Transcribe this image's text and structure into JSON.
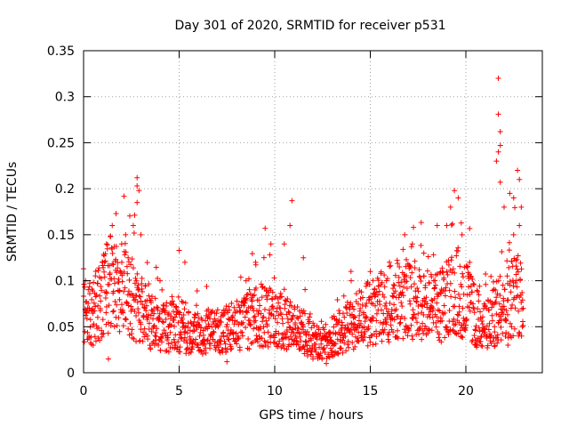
{
  "chart_data": {
    "type": "scatter",
    "title": "Day 301 of 2020, SRMTID for receiver p531",
    "xlabel": "GPS time / hours",
    "ylabel": "SRMTID / TECUs",
    "xlim": [
      0,
      24
    ],
    "ylim": [
      0,
      0.35
    ],
    "x_ticks": [
      0,
      5,
      10,
      15,
      20
    ],
    "y_ticks": [
      0,
      0.05,
      0.1,
      0.15,
      0.2,
      0.25,
      0.3,
      0.35
    ],
    "x_tick_labels": [
      "0",
      "5",
      "10",
      "15",
      "20"
    ],
    "y_tick_labels": [
      "0",
      "0.05",
      "0.1",
      "0.15",
      "0.2",
      "0.25",
      "0.3",
      "0.35"
    ],
    "grid": true,
    "marker": "+",
    "series_color": "#ff0000",
    "trend": [
      [
        0.0,
        0.06
      ],
      [
        0.5,
        0.065
      ],
      [
        1.0,
        0.08
      ],
      [
        1.5,
        0.1
      ],
      [
        2.0,
        0.09
      ],
      [
        2.5,
        0.08
      ],
      [
        3.0,
        0.07
      ],
      [
        3.5,
        0.055
      ],
      [
        4.0,
        0.05
      ],
      [
        5.0,
        0.048
      ],
      [
        6.0,
        0.042
      ],
      [
        7.0,
        0.045
      ],
      [
        8.0,
        0.05
      ],
      [
        9.0,
        0.06
      ],
      [
        10.0,
        0.06
      ],
      [
        11.0,
        0.05
      ],
      [
        12.0,
        0.035
      ],
      [
        12.8,
        0.03
      ],
      [
        13.5,
        0.045
      ],
      [
        14.5,
        0.06
      ],
      [
        15.5,
        0.07
      ],
      [
        16.5,
        0.08
      ],
      [
        17.5,
        0.08
      ],
      [
        18.5,
        0.07
      ],
      [
        19.5,
        0.09
      ],
      [
        20.0,
        0.08
      ],
      [
        20.5,
        0.06
      ],
      [
        21.0,
        0.05
      ],
      [
        21.5,
        0.06
      ],
      [
        22.0,
        0.08
      ],
      [
        22.5,
        0.085
      ],
      [
        23.0,
        0.08
      ]
    ],
    "points": [
      [
        0.0,
        0.113
      ],
      [
        0.1,
        0.1
      ],
      [
        0.3,
        0.07
      ],
      [
        0.5,
        0.03
      ],
      [
        1.0,
        0.12
      ],
      [
        1.2,
        0.14
      ],
      [
        1.5,
        0.16
      ],
      [
        1.7,
        0.173
      ],
      [
        2.0,
        0.12
      ],
      [
        2.2,
        0.15
      ],
      [
        2.6,
        0.16
      ],
      [
        2.8,
        0.212
      ],
      [
        2.8,
        0.203
      ],
      [
        2.9,
        0.198
      ],
      [
        2.8,
        0.185
      ],
      [
        3.0,
        0.15
      ],
      [
        1.3,
        0.015
      ],
      [
        4.0,
        0.1
      ],
      [
        5.0,
        0.133
      ],
      [
        5.3,
        0.12
      ],
      [
        6.0,
        0.03
      ],
      [
        7.5,
        0.012
      ],
      [
        8.5,
        0.1
      ],
      [
        9.0,
        0.12
      ],
      [
        9.5,
        0.157
      ],
      [
        9.8,
        0.14
      ],
      [
        10.5,
        0.14
      ],
      [
        10.8,
        0.16
      ],
      [
        10.9,
        0.187
      ],
      [
        11.5,
        0.125
      ],
      [
        12.0,
        0.015
      ],
      [
        12.7,
        0.01
      ],
      [
        13.0,
        0.06
      ],
      [
        14.0,
        0.1
      ],
      [
        15.0,
        0.11
      ],
      [
        16.0,
        0.12
      ],
      [
        16.8,
        0.15
      ],
      [
        17.2,
        0.14
      ],
      [
        17.8,
        0.13
      ],
      [
        18.5,
        0.16
      ],
      [
        19.0,
        0.16
      ],
      [
        19.2,
        0.18
      ],
      [
        19.4,
        0.198
      ],
      [
        19.6,
        0.19
      ],
      [
        19.8,
        0.15
      ],
      [
        20.2,
        0.12
      ],
      [
        20.5,
        0.03
      ],
      [
        21.5,
        0.05
      ],
      [
        21.7,
        0.32
      ],
      [
        21.7,
        0.281
      ],
      [
        21.8,
        0.262
      ],
      [
        21.8,
        0.247
      ],
      [
        21.7,
        0.24
      ],
      [
        21.6,
        0.23
      ],
      [
        21.8,
        0.207
      ],
      [
        22.0,
        0.18
      ],
      [
        22.3,
        0.195
      ],
      [
        22.5,
        0.19
      ],
      [
        22.7,
        0.22
      ],
      [
        22.8,
        0.21
      ],
      [
        22.9,
        0.18
      ],
      [
        22.5,
        0.15
      ],
      [
        22.8,
        0.16
      ],
      [
        22.2,
        0.03
      ],
      [
        23.0,
        0.07
      ]
    ]
  }
}
